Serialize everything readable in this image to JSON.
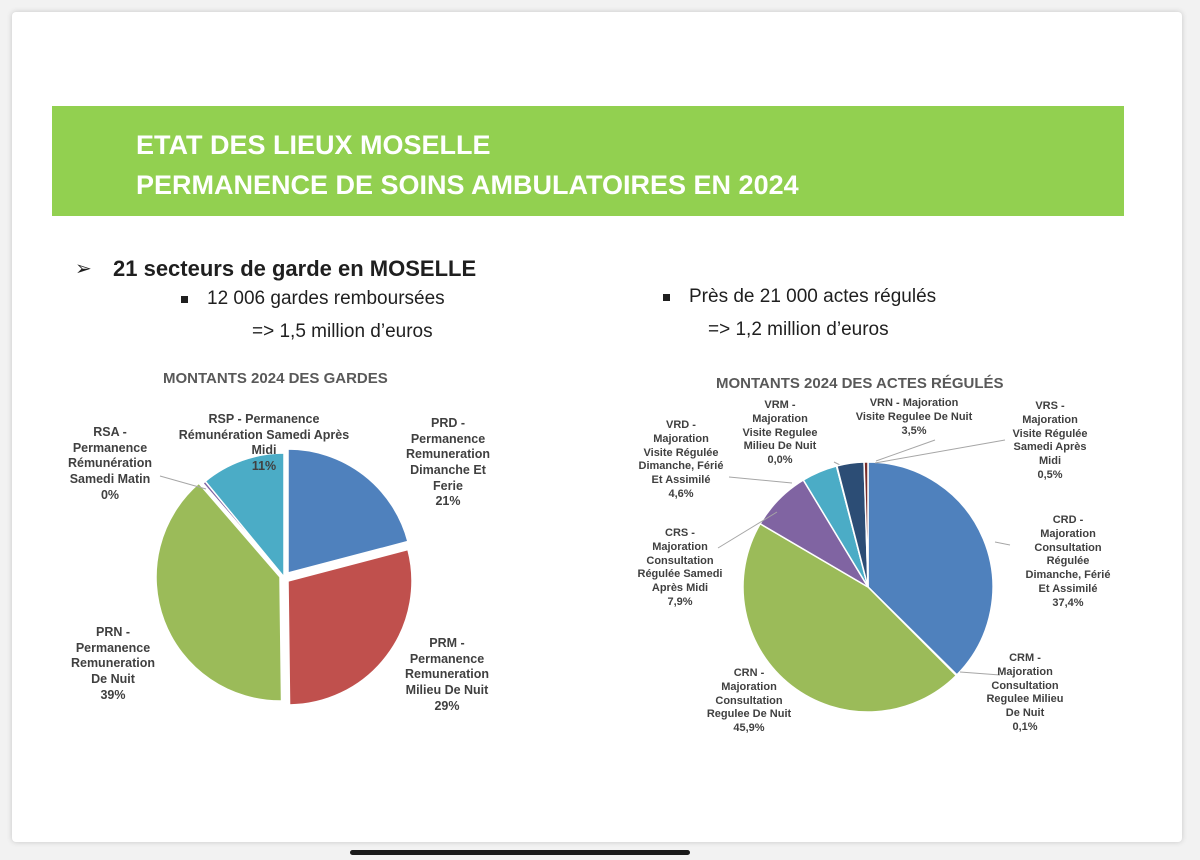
{
  "banner": {
    "color": "#92d050",
    "line1": "ETAT DES LIEUX MOSELLE",
    "line2": "PERMANENCE DE SOINS AMBULATOIRES EN 2024"
  },
  "left_text": {
    "arrow": "➢",
    "heading": "21 secteurs de garde en MOSELLE",
    "bullet": "12 006 gardes remboursées",
    "sub": "=> 1,5 million d’euros"
  },
  "right_text": {
    "bullet": "Près de 21 000 actes régulés",
    "sub": "=> 1,2 million d’euros"
  },
  "chart_data": [
    {
      "type": "pie",
      "title": "MONTANTS 2024 DES GARDES",
      "slices": [
        {
          "code": "PRD",
          "lines": [
            "PRD -",
            "Permanence",
            "Remuneration",
            "Dimanche Et",
            "Ferie"
          ],
          "pct_label": "21%",
          "value": 21,
          "color": "#4f81bd"
        },
        {
          "code": "PRM",
          "lines": [
            "PRM -",
            "Permanence",
            "Remuneration",
            "Milieu De Nuit"
          ],
          "pct_label": "29%",
          "value": 29,
          "color": "#c0504d"
        },
        {
          "code": "PRN",
          "lines": [
            "PRN -",
            "Permanence",
            "Remuneration",
            "De Nuit"
          ],
          "pct_label": "39%",
          "value": 39,
          "color": "#9bbb59"
        },
        {
          "code": "RSA",
          "lines": [
            "RSA -",
            "Permanence",
            "Rémunération",
            "Samedi Matin"
          ],
          "pct_label": "0%",
          "value": 0.4,
          "color": "#8064a2"
        },
        {
          "code": "RSP",
          "lines": [
            "RSP - Permanence",
            "Rémunération Samedi Après",
            "Midi"
          ],
          "pct_label": "11%",
          "value": 11,
          "color": "#4bacc6"
        }
      ]
    },
    {
      "type": "pie",
      "title": "MONTANTS 2024 DES ACTES RÉGULÉS",
      "slices": [
        {
          "code": "CRD",
          "lines": [
            "CRD -",
            "Majoration",
            "Consultation",
            "Régulée",
            "Dimanche, Férié",
            "Et Assimilé"
          ],
          "pct_label": "37,4%",
          "value": 37.4,
          "color": "#4f81bd"
        },
        {
          "code": "CRM",
          "lines": [
            "CRM -",
            "Majoration",
            "Consultation",
            "Regulee Milieu",
            "De Nuit"
          ],
          "pct_label": "0,1%",
          "value": 0.1,
          "color": "#c0504d"
        },
        {
          "code": "CRN",
          "lines": [
            "CRN -",
            "Majoration",
            "Consultation",
            "Regulee De Nuit"
          ],
          "pct_label": "45,9%",
          "value": 45.9,
          "color": "#9bbb59"
        },
        {
          "code": "CRS",
          "lines": [
            "CRS -",
            "Majoration",
            "Consultation",
            "Régulée Samedi",
            "Après Midi"
          ],
          "pct_label": "7,9%",
          "value": 7.9,
          "color": "#8064a2"
        },
        {
          "code": "VRD",
          "lines": [
            "VRD -",
            "Majoration",
            "Visite Régulée",
            "Dimanche, Férié",
            "Et Assimilé"
          ],
          "pct_label": "4,6%",
          "value": 4.6,
          "color": "#4bacc6"
        },
        {
          "code": "VRM",
          "lines": [
            "VRM -",
            "Majoration",
            "Visite Regulee",
            "Milieu De Nuit"
          ],
          "pct_label": "0,0%",
          "value": 0.05,
          "color": "#f79646"
        },
        {
          "code": "VRN",
          "lines": [
            "VRN - Majoration",
            "Visite Regulee De Nuit"
          ],
          "pct_label": "3,5%",
          "value": 3.5,
          "color": "#2c4d75"
        },
        {
          "code": "VRS",
          "lines": [
            "VRS -",
            "Majoration",
            "Visite Régulée",
            "Samedi Après",
            "Midi"
          ],
          "pct_label": "0,5%",
          "value": 0.5,
          "color": "#772c2a"
        }
      ]
    }
  ]
}
